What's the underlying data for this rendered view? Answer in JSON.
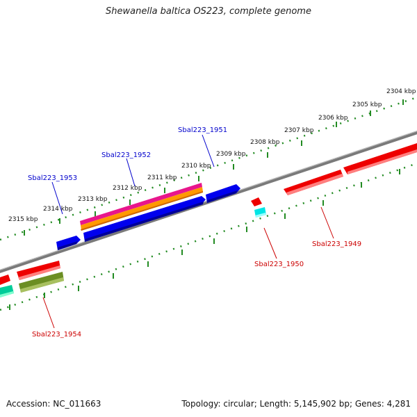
{
  "title": "Shewanella baltica OS223, complete genome",
  "footer": {
    "accession": "Accession: NC_011663",
    "summary": "Topology: circular; Length: 5,145,902 bp; Genes: 4,281"
  },
  "scale_labels": [
    "2304 kbp",
    "2305 kbp",
    "2306 kbp",
    "2307 kbp",
    "2308 kbp",
    "2309 kbp",
    "2310 kbp",
    "2311 kbp",
    "2312 kbp",
    "2313 kbp",
    "2314 kbp",
    "2315 kbp"
  ],
  "gene_labels": {
    "forward": [
      "Sbal223_1951",
      "Sbal223_1952",
      "Sbal223_1953"
    ],
    "reverse": [
      "Sbal223_1949",
      "Sbal223_1950",
      "Sbal223_1954"
    ]
  },
  "colors": {
    "forward_label": "#0000cc",
    "reverse_label": "#cc0000",
    "backbone": "#808080",
    "ticks": "#228b22"
  }
}
